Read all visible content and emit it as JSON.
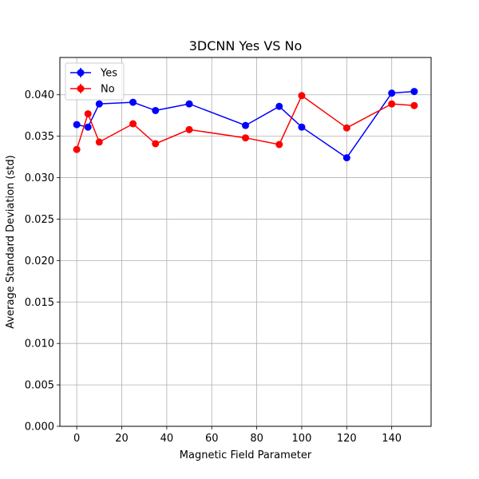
{
  "chart_data": {
    "type": "line",
    "title": "3DCNN Yes VS No",
    "xlabel": "Magnetic Field Parameter",
    "ylabel": "Average Standard Deviation (std)",
    "xlim": [
      -7.5,
      157.5
    ],
    "ylim": [
      0.0,
      0.0445
    ],
    "xticks": [
      0,
      20,
      40,
      60,
      80,
      100,
      120,
      140
    ],
    "xtick_labels": [
      "0",
      "20",
      "40",
      "60",
      "80",
      "100",
      "120",
      "140"
    ],
    "yticks": [
      0.0,
      0.005,
      0.01,
      0.015,
      0.02,
      0.025,
      0.03,
      0.035,
      0.04
    ],
    "ytick_labels": [
      "0.000",
      "0.005",
      "0.010",
      "0.015",
      "0.020",
      "0.025",
      "0.030",
      "0.035",
      "0.040"
    ],
    "grid": true,
    "legend_position": "top-left",
    "x": [
      0,
      5,
      10,
      25,
      35,
      50,
      75,
      90,
      100,
      120,
      140,
      150
    ],
    "series": [
      {
        "name": "Yes",
        "color": "#0000ff",
        "values": [
          0.0364,
          0.0361,
          0.0389,
          0.0391,
          0.0381,
          0.0389,
          0.0363,
          0.0386,
          0.0361,
          0.0324,
          0.0402,
          0.0404
        ]
      },
      {
        "name": "No",
        "color": "#ff0000",
        "values": [
          0.0334,
          0.0377,
          0.0343,
          0.0365,
          0.0341,
          0.0358,
          0.0348,
          0.034,
          0.0399,
          0.036,
          0.0389,
          0.0387
        ]
      }
    ]
  }
}
